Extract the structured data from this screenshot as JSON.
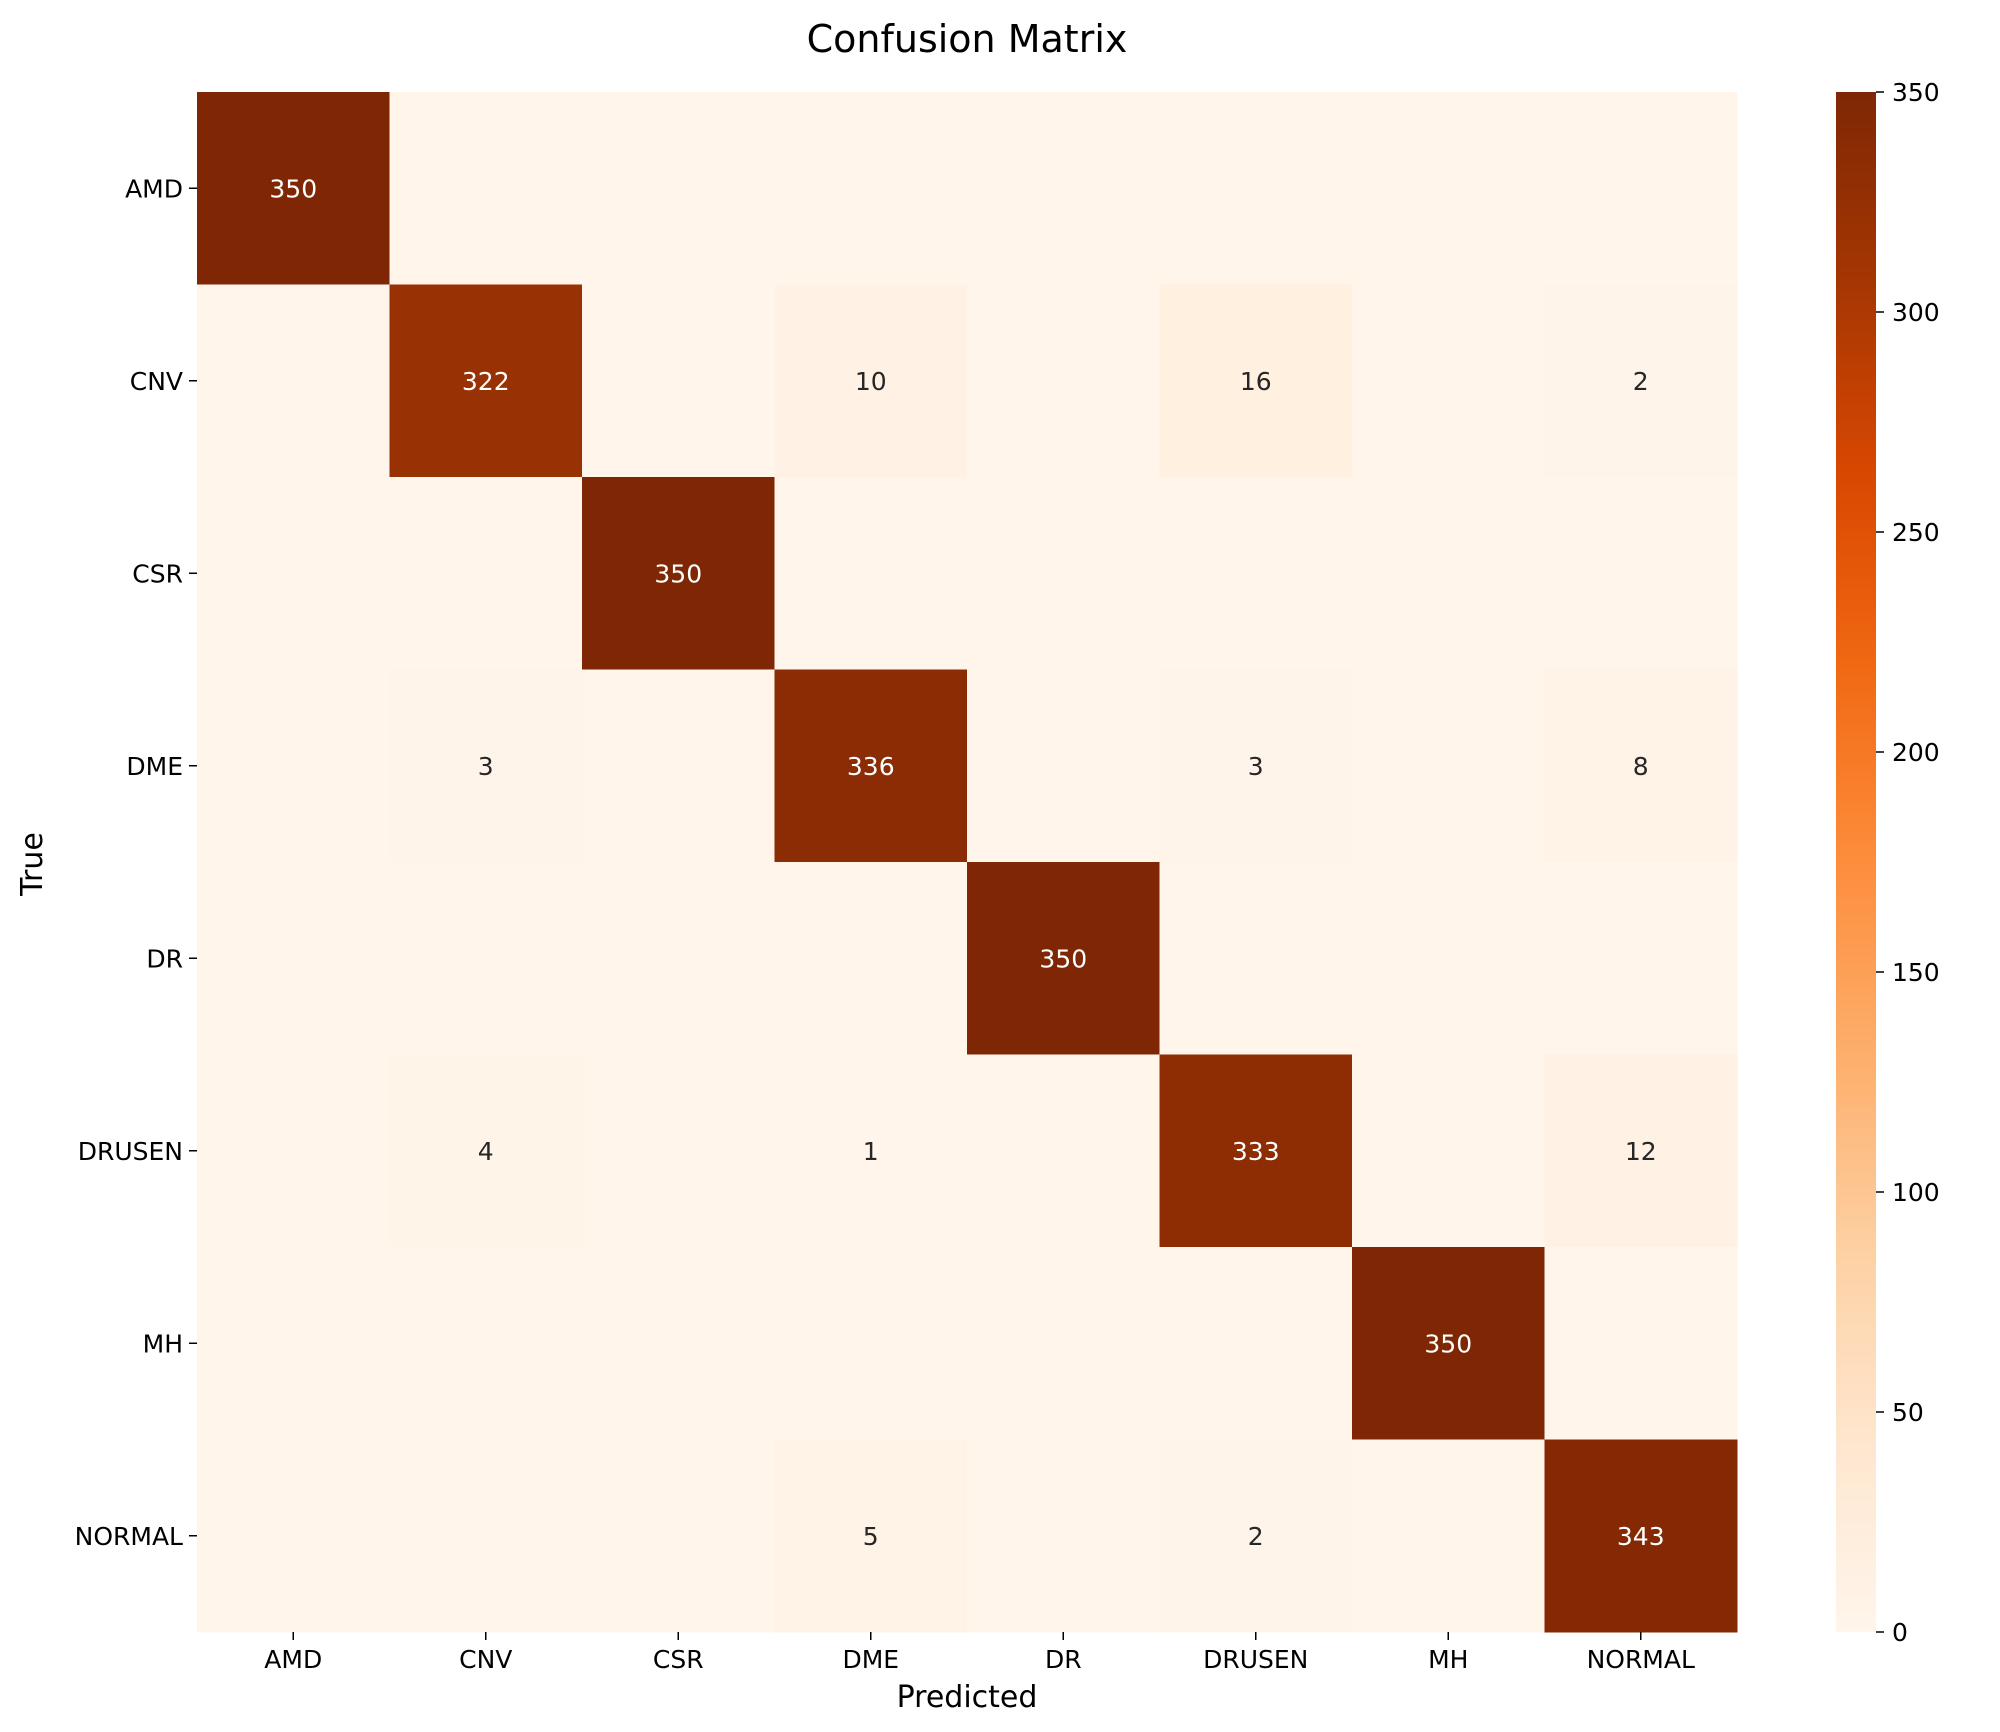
{
  "chart_data": {
    "type": "heatmap",
    "title": "Confusion Matrix",
    "xlabel": "Predicted",
    "ylabel": "True",
    "x_categories": [
      "AMD",
      "CNV",
      "CSR",
      "DME",
      "DR",
      "DRUSEN",
      "MH",
      "NORMAL"
    ],
    "y_categories": [
      "AMD",
      "CNV",
      "CSR",
      "DME",
      "DR",
      "DRUSEN",
      "MH",
      "NORMAL"
    ],
    "values": [
      [
        350,
        0,
        0,
        0,
        0,
        0,
        0,
        0
      ],
      [
        0,
        322,
        0,
        10,
        0,
        16,
        0,
        2
      ],
      [
        0,
        0,
        350,
        0,
        0,
        0,
        0,
        0
      ],
      [
        0,
        3,
        0,
        336,
        0,
        3,
        0,
        8
      ],
      [
        0,
        0,
        0,
        0,
        350,
        0,
        0,
        0
      ],
      [
        0,
        4,
        0,
        1,
        0,
        333,
        0,
        12
      ],
      [
        0,
        0,
        0,
        0,
        0,
        0,
        350,
        0
      ],
      [
        0,
        0,
        0,
        5,
        0,
        2,
        0,
        343
      ]
    ],
    "colorbar": {
      "range": [
        0,
        350
      ],
      "ticks": [
        0,
        50,
        100,
        150,
        200,
        250,
        300,
        350
      ],
      "colormap": "Oranges"
    }
  }
}
